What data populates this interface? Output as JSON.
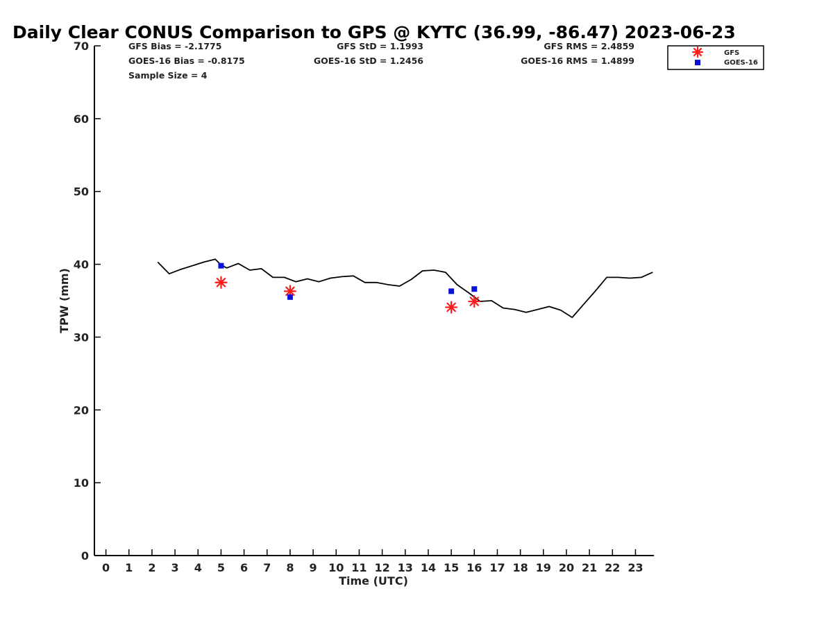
{
  "chart_data": {
    "type": "line",
    "title": "Daily Clear CONUS Comparison to GPS @ KYTC (36.99, -86.47) 2023-06-23",
    "xlabel": "Time (UTC)",
    "ylabel": "TPW (mm)",
    "xlim": [
      -0.5,
      23.8
    ],
    "ylim": [
      0,
      70
    ],
    "x_ticks": [
      "0",
      "1",
      "2",
      "3",
      "4",
      "5",
      "6",
      "7",
      "8",
      "9",
      "10",
      "11",
      "12",
      "13",
      "14",
      "15",
      "16",
      "17",
      "18",
      "19",
      "20",
      "21",
      "22",
      "23"
    ],
    "y_ticks": [
      "0",
      "10",
      "20",
      "30",
      "40",
      "50",
      "60",
      "70"
    ],
    "grid": false,
    "legend_position": "top-right",
    "stats": {
      "gfs_bias": "GFS Bias = -2.1775",
      "goes_bias": "GOES-16 Bias = -0.8175",
      "sample_size": "Sample Size = 4",
      "gfs_std": "GFS StD = 1.1993",
      "goes_std": "GOES-16 StD = 1.2456",
      "gfs_rms": "GFS RMS = 2.4859",
      "goes_rms": "GOES-16 RMS = 1.4899"
    },
    "series": [
      {
        "name": "",
        "kind": "line",
        "color": "#000000",
        "x": [
          2.25,
          2.75,
          3.25,
          3.75,
          4.25,
          4.75,
          5.0,
          5.25,
          5.75,
          6.25,
          6.75,
          7.25,
          7.75,
          8.25,
          8.75,
          9.25,
          9.75,
          10.25,
          10.75,
          11.25,
          11.75,
          12.25,
          12.75,
          13.25,
          13.75,
          14.25,
          14.75,
          15.25,
          15.75,
          16.25,
          16.75,
          17.25,
          17.75,
          18.25,
          18.75,
          19.25,
          19.75,
          20.25,
          20.75,
          21.25,
          21.75,
          22.25,
          22.75,
          23.25,
          23.75
        ],
        "y": [
          40.3,
          38.7,
          39.3,
          39.8,
          40.3,
          40.7,
          39.9,
          39.5,
          40.1,
          39.2,
          39.4,
          38.2,
          38.2,
          37.6,
          38.0,
          37.6,
          38.1,
          38.3,
          38.4,
          37.5,
          37.5,
          37.2,
          37.0,
          37.9,
          39.1,
          39.2,
          38.9,
          37.2,
          36.1,
          34.9,
          35.0,
          34.0,
          33.8,
          33.4,
          33.8,
          34.2,
          33.7,
          32.7,
          34.5,
          36.3,
          38.2,
          38.2,
          38.1,
          38.2,
          38.9
        ]
      },
      {
        "name": "GFS",
        "kind": "scatter",
        "marker": "asterisk",
        "color": "#ff1a1a",
        "x": [
          5,
          8,
          15,
          16
        ],
        "y": [
          37.5,
          36.3,
          34.1,
          34.9
        ]
      },
      {
        "name": "GOES-16",
        "kind": "scatter",
        "marker": "square",
        "color": "#0a12d8",
        "x": [
          5,
          8,
          15,
          16
        ],
        "y": [
          39.8,
          35.5,
          36.3,
          36.6
        ]
      }
    ]
  }
}
